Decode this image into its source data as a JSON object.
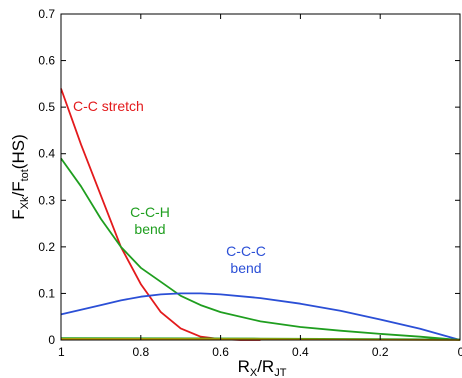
{
  "chart_data": {
    "type": "line",
    "xlabel": {
      "main": "R",
      "sub1": "X",
      "mid": "/R",
      "sub2": "JT"
    },
    "ylabel": {
      "main": "F",
      "sub1": "Xk",
      "mid": "/F",
      "sub2": "tot",
      "tail": "(HS)"
    },
    "xlim": [
      1,
      0
    ],
    "ylim": [
      0,
      0.7
    ],
    "x_reversed": true,
    "x_ticks": [
      1,
      0.8,
      0.6,
      0.4,
      0.2,
      0
    ],
    "x_tick_labels": [
      "1",
      "0.8",
      "0.6",
      "0.4",
      "0.2",
      "0"
    ],
    "y_ticks": [
      0,
      0.1,
      0.2,
      0.3,
      0.4,
      0.5,
      0.6,
      0.7
    ],
    "y_tick_labels": [
      "0",
      "0.1",
      "0.2",
      "0.3",
      "0.4",
      "0.5",
      "0.6",
      "0.7"
    ],
    "grid": false,
    "box": true,
    "series": [
      {
        "name": "C-C stretch",
        "color": "#e31a1c",
        "x": [
          1.0,
          0.95,
          0.9,
          0.85,
          0.8,
          0.75,
          0.7,
          0.65,
          0.6,
          0.55,
          0.5
        ],
        "y": [
          0.54,
          0.42,
          0.31,
          0.2,
          0.12,
          0.06,
          0.025,
          0.007,
          0.002,
          0.0,
          0.0
        ]
      },
      {
        "name": "C-C-H bend",
        "color": "#1f9e1f",
        "x": [
          1.0,
          0.95,
          0.9,
          0.85,
          0.8,
          0.75,
          0.7,
          0.65,
          0.6,
          0.5,
          0.4,
          0.3,
          0.2,
          0.1,
          0.0
        ],
        "y": [
          0.39,
          0.33,
          0.26,
          0.2,
          0.155,
          0.125,
          0.095,
          0.075,
          0.06,
          0.04,
          0.028,
          0.02,
          0.013,
          0.007,
          0.0
        ]
      },
      {
        "name": "C-C-C bend",
        "color": "#2b4fd6",
        "x": [
          1.0,
          0.95,
          0.9,
          0.85,
          0.8,
          0.75,
          0.7,
          0.65,
          0.6,
          0.5,
          0.4,
          0.3,
          0.2,
          0.1,
          0.0
        ],
        "y": [
          0.055,
          0.065,
          0.075,
          0.085,
          0.093,
          0.098,
          0.1,
          0.1,
          0.098,
          0.09,
          0.078,
          0.063,
          0.044,
          0.024,
          0.0
        ]
      },
      {
        "name": "",
        "color": "#1f9e1f",
        "x": [
          1.0,
          0.5,
          0.0
        ],
        "y": [
          0.004,
          0.003,
          0.001
        ]
      },
      {
        "name": "",
        "color": "#d4a000",
        "x": [
          1.0,
          0.5,
          0.0
        ],
        "y": [
          0.002,
          0.0015,
          0.0
        ]
      }
    ],
    "annotations": [
      {
        "lines": [
          "C-C stretch"
        ],
        "color": "#e31a1c"
      },
      {
        "lines": [
          "C-C-H",
          "bend"
        ],
        "color": "#1f9e1f"
      },
      {
        "lines": [
          "C-C-C",
          "bend"
        ],
        "color": "#2b4fd6"
      }
    ]
  }
}
